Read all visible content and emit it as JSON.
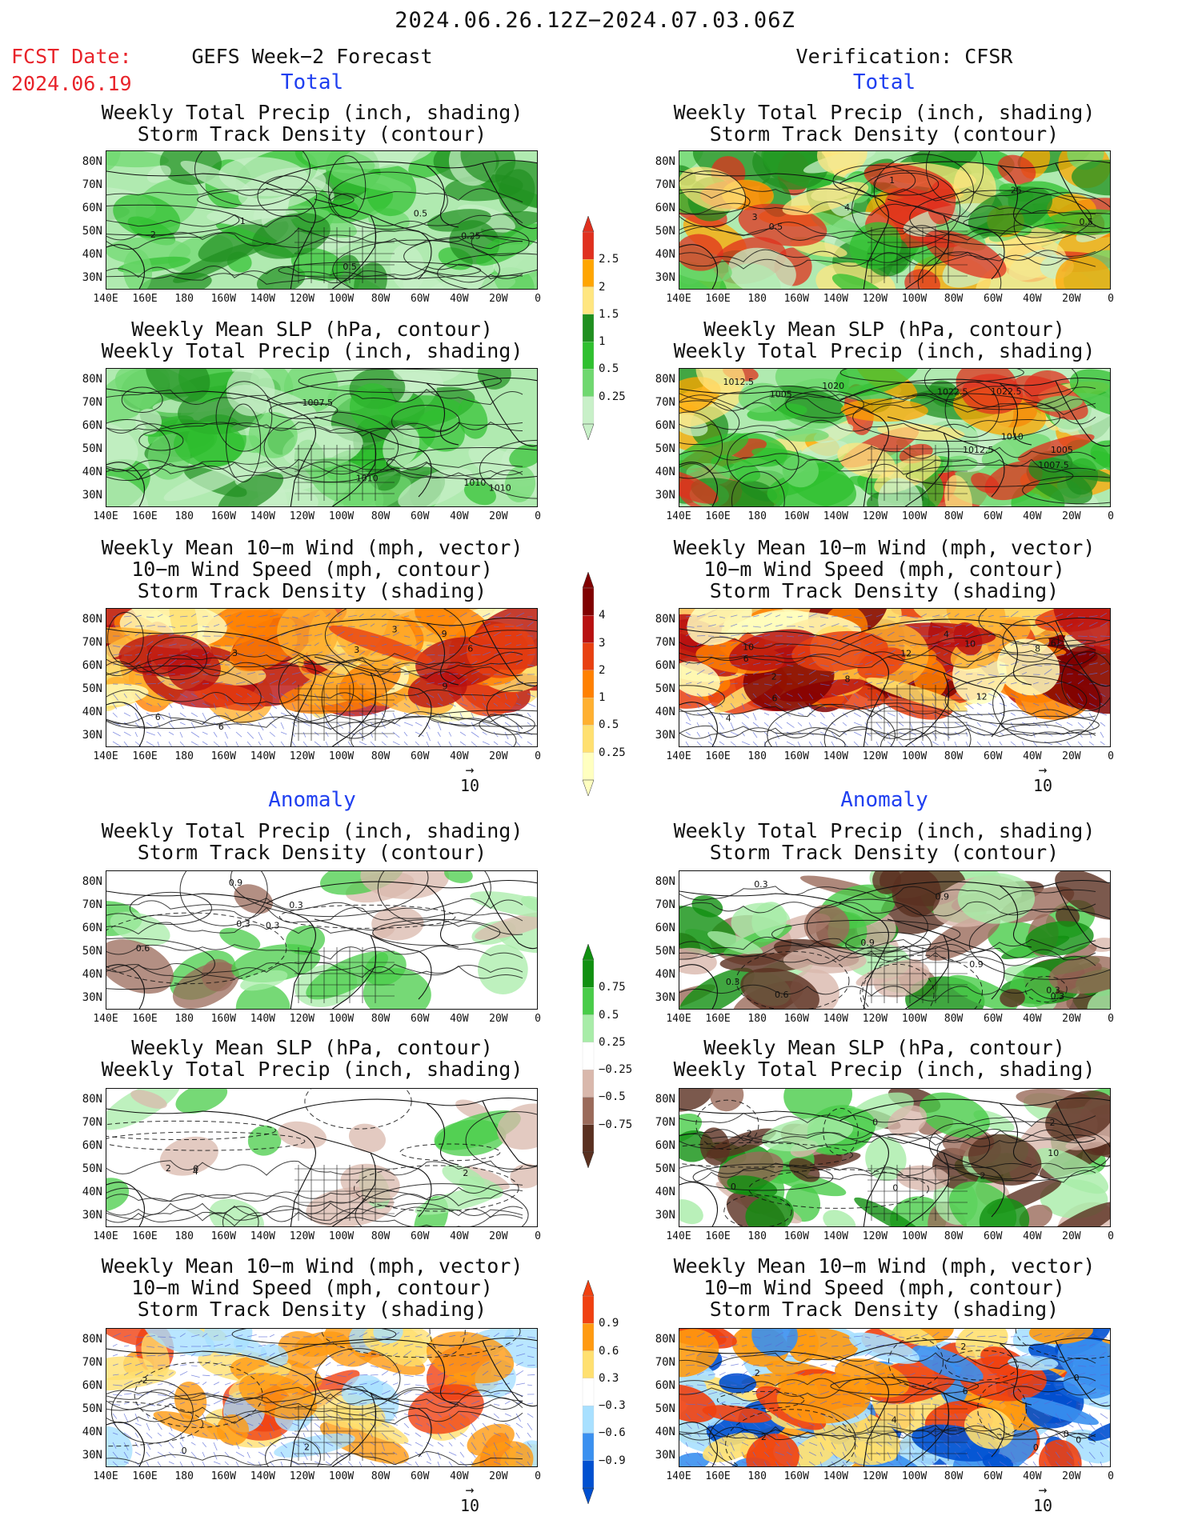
{
  "header": {
    "date_range": "2024.06.26.12Z−2024.07.03.06Z",
    "fcst_label": "FCST Date:",
    "fcst_date": "2024.06.19",
    "left_title": "GEFS Week−2 Forecast",
    "right_title": "Verification: CFSR"
  },
  "sections": {
    "total": "Total",
    "anomaly": "Anomaly"
  },
  "panel_titles": {
    "precip_track": "Weekly Total Precip (inch, shading)\nStorm Track Density (contour)",
    "slp_precip": "Weekly Mean SLP (hPa, contour)\nWeekly Total Precip (inch, shading)",
    "wind_track": "Weekly Mean 10−m Wind (mph, vector)\n10−m Wind Speed (mph, contour)\nStorm Track Density (shading)"
  },
  "axes": {
    "lat_labels": [
      "80N",
      "70N",
      "60N",
      "50N",
      "40N",
      "30N"
    ],
    "lon_labels": [
      "140E",
      "160E",
      "180",
      "160W",
      "140W",
      "120W",
      "100W",
      "80W",
      "60W",
      "40W",
      "20W",
      "0"
    ]
  },
  "vector_ref": "10",
  "colorbars": {
    "precip_total": [
      "0.25",
      "0.5",
      "1",
      "1.5",
      "2",
      "2.5"
    ],
    "track_total": [
      "0.25",
      "0.5",
      "1",
      "2",
      "3",
      "4"
    ],
    "precip_anom": [
      "−0.75",
      "−0.5",
      "−0.25",
      "0.25",
      "0.5",
      "0.75"
    ],
    "track_anom": [
      "−0.9",
      "−0.6",
      "−0.3",
      "0.3",
      "0.6",
      "0.9"
    ]
  },
  "contour_labels": {
    "l1": [
      "1",
      "2",
      "0.5",
      "0.5",
      "0.25"
    ],
    "r1": [
      "4",
      "1",
      "0.5",
      "0.5",
      "25",
      "3"
    ],
    "l2": [
      "1010",
      "1007.5",
      "1010",
      "1010"
    ],
    "r2": [
      "1007.5",
      "1010",
      "1005",
      "1020",
      "1005",
      "1012.5",
      "1022.5",
      "1012.5",
      "1022.5"
    ],
    "l3": [
      "3",
      "6",
      "3",
      "6",
      "9",
      "6",
      "3",
      "9"
    ],
    "r3": [
      "4",
      "6",
      "8",
      "6",
      "2",
      "12",
      "10",
      "8",
      "6",
      "10",
      "12",
      "4"
    ],
    "l4": [
      "0.3",
      "0.6",
      "0.3",
      "0.9",
      "0.3"
    ],
    "r4": [
      "0.9",
      "0.3",
      "0.3",
      "0.9",
      "0.3",
      "0.6",
      "0.3",
      "0.9"
    ],
    "l5": [
      "4",
      "2",
      "2",
      "0"
    ],
    "r5": [
      "10",
      "2",
      "0",
      "2",
      "0",
      "0",
      "2"
    ],
    "l6": [
      "2",
      "0",
      "2"
    ],
    "r6": [
      "0",
      "2",
      "0",
      "4",
      "2",
      "0",
      "6",
      "2",
      "0"
    ]
  },
  "colors": {
    "precip_total": [
      "#c8f0c8",
      "#6fd86f",
      "#2fc02f",
      "#1f8f1f",
      "#ffe680",
      "#ffa500",
      "#e0301e"
    ],
    "track_total": [
      "#ffffc0",
      "#ffe070",
      "#ffb030",
      "#ff8000",
      "#e84010",
      "#b81010",
      "#800000"
    ],
    "precip_anom": [
      "#5a3020",
      "#9a6a5a",
      "#d9b8ac",
      "#ffffff",
      "#a8eca8",
      "#48cc48",
      "#109010"
    ],
    "track_anom": [
      "#0050d0",
      "#3a90f0",
      "#a8e0ff",
      "#ffffff",
      "#ffe070",
      "#ff9a10",
      "#f04010"
    ],
    "header_date_red": "#e8232a",
    "section_blue": "#1f3ff0"
  }
}
